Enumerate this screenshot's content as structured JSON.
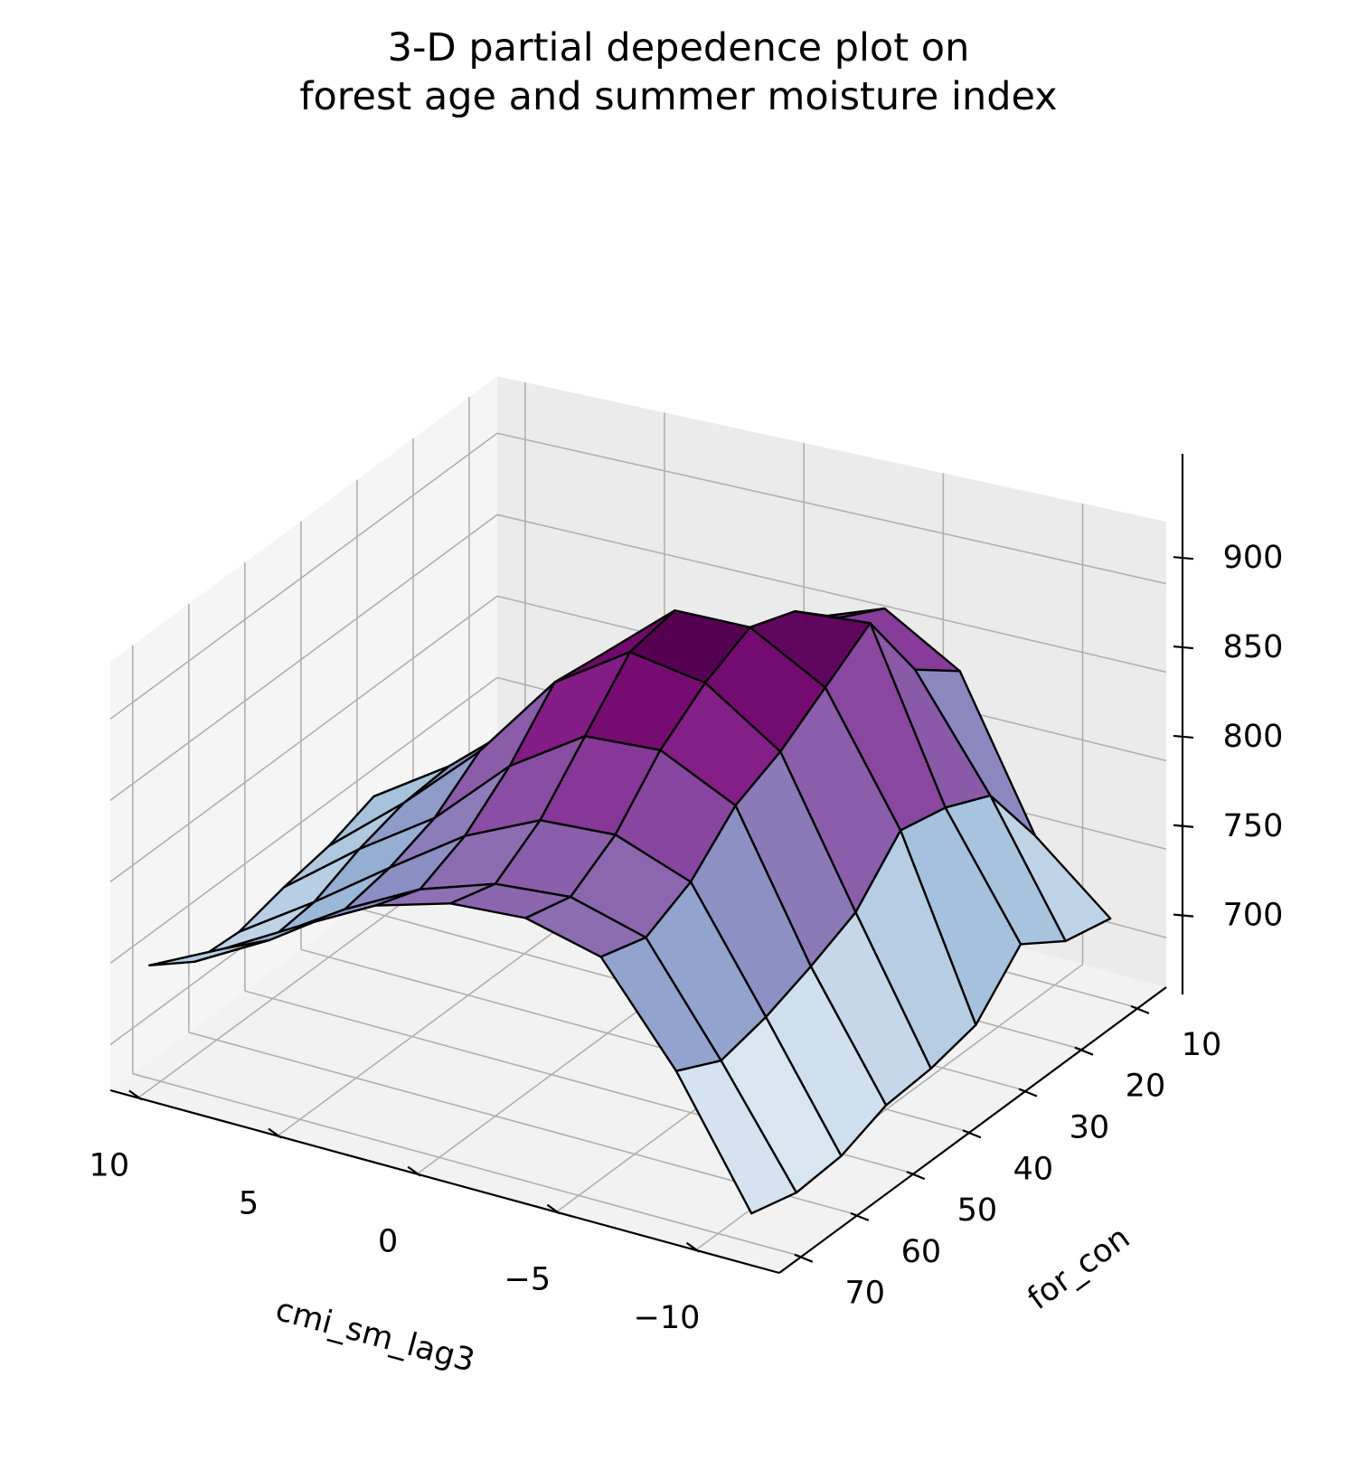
{
  "chart_data": {
    "type": "surface3d",
    "title_lines": [
      "3-D partial depedence plot on",
      "forest age and summer moisture index"
    ],
    "xlabel": "cmi_sm_lag3",
    "ylabel": "for_con",
    "zlabel": "",
    "x_ticks": [
      10,
      5,
      0,
      -5,
      -10
    ],
    "x_tick_labels": [
      "10",
      "5",
      "0",
      "−5",
      "−10"
    ],
    "y_ticks": [
      10,
      20,
      30,
      40,
      50,
      60,
      70
    ],
    "y_tick_labels": [
      "10",
      "20",
      "30",
      "40",
      "50",
      "60",
      "70"
    ],
    "z_ticks": [
      700,
      750,
      800,
      850,
      900
    ],
    "z_tick_labels": [
      "700",
      "750",
      "800",
      "850",
      "900"
    ],
    "xlim": [
      -13,
      11
    ],
    "ylim": [
      5,
      74
    ],
    "zlim": [
      672,
      935
    ],
    "colormap": "BuPu",
    "edge_color": "#000000",
    "grid": true,
    "x": [
      10,
      7.3,
      4.6,
      1.9,
      -0.8,
      -3.5,
      -6.2,
      -8.9,
      -11.6
    ],
    "y": [
      8,
      16,
      24,
      32,
      40,
      48,
      56,
      64,
      72
    ],
    "z": [
      [
        700,
        712,
        742,
        790,
        842,
        858,
        832,
        748,
        712
      ],
      [
        722,
        728,
        758,
        812,
        850,
        872,
        852,
        790,
        718
      ],
      [
        738,
        752,
        782,
        835,
        868,
        895,
        898,
        802,
        735
      ],
      [
        750,
        780,
        818,
        868,
        905,
        905,
        880,
        808,
        708
      ],
      [
        740,
        778,
        820,
        872,
        900,
        892,
        862,
        780,
        702
      ],
      [
        735,
        770,
        800,
        842,
        870,
        872,
        850,
        768,
        700
      ],
      [
        728,
        758,
        790,
        820,
        840,
        842,
        825,
        758,
        690
      ],
      [
        730,
        755,
        785,
        808,
        822,
        825,
        812,
        752,
        688
      ],
      [
        748,
        770,
        795,
        818,
        830,
        832,
        820,
        765,
        695
      ]
    ]
  }
}
